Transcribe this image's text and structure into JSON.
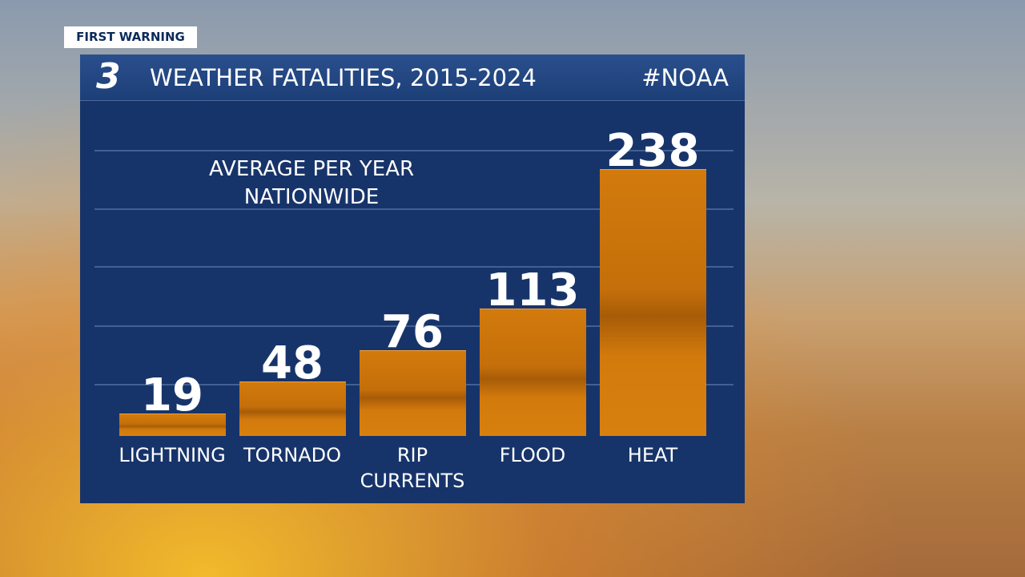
{
  "badge": "FIRST WARNING",
  "logo": "3",
  "hashtag": "#NOAA",
  "chart_data": {
    "type": "bar",
    "title": "WEATHER FATALITIES, 2015-2024",
    "subtitle": "AVERAGE PER YEAR NATIONWIDE",
    "categories": [
      "LIGHTNING",
      "TORNADO",
      "RIP CURRENTS",
      "FLOOD",
      "HEAT"
    ],
    "values": [
      19,
      48,
      76,
      113,
      238
    ],
    "color": "#d27a0c"
  }
}
